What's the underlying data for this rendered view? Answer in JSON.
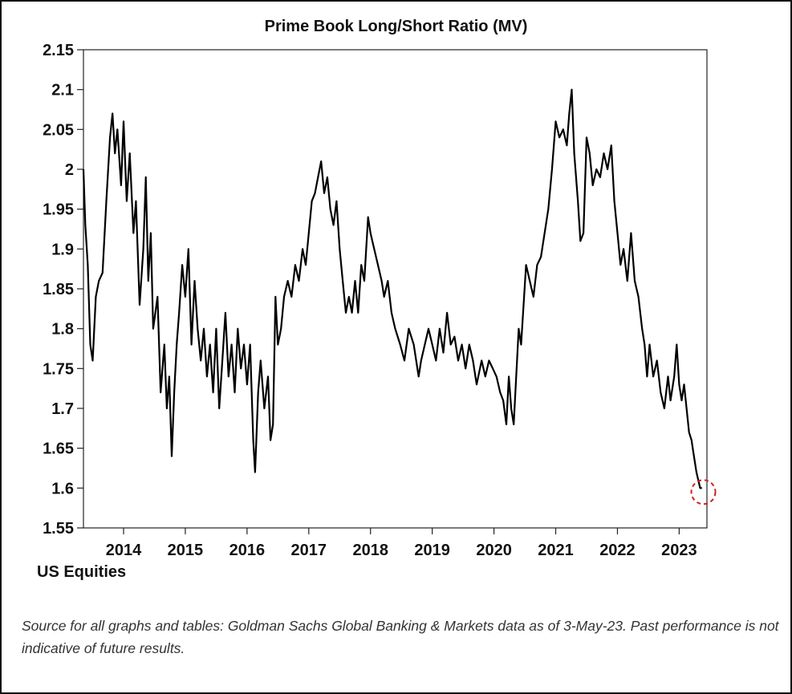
{
  "chart_data": {
    "type": "line",
    "title": "Prime Book Long/Short Ratio (MV)",
    "xlabel": "US Equities",
    "ylabel": "",
    "ylim": [
      1.55,
      2.15
    ],
    "yticks": [
      1.55,
      1.6,
      1.65,
      1.7,
      1.75,
      1.8,
      1.85,
      1.9,
      1.95,
      2,
      2.05,
      2.1,
      2.15
    ],
    "ytick_labels": [
      "1.55",
      "1.6",
      "1.65",
      "1.7",
      "1.75",
      "1.8",
      "1.85",
      "1.9",
      "1.95",
      "2",
      "2.05",
      "2.1",
      "2.15"
    ],
    "xlim": [
      2013.35,
      2023.45
    ],
    "xticks": [
      2014,
      2015,
      2016,
      2017,
      2018,
      2019,
      2020,
      2021,
      2022,
      2023
    ],
    "xtick_labels": [
      "2014",
      "2015",
      "2016",
      "2017",
      "2018",
      "2019",
      "2020",
      "2021",
      "2022",
      "2023"
    ],
    "grid": false,
    "highlight": {
      "x": 2023.34,
      "y": 1.595,
      "style": "dashed-circle",
      "color": "#cc2222"
    },
    "series": [
      {
        "color": "#000000",
        "points": [
          [
            2013.35,
            2.0
          ],
          [
            2013.38,
            1.93
          ],
          [
            2013.42,
            1.88
          ],
          [
            2013.46,
            1.78
          ],
          [
            2013.5,
            1.76
          ],
          [
            2013.55,
            1.84
          ],
          [
            2013.6,
            1.86
          ],
          [
            2013.66,
            1.87
          ],
          [
            2013.72,
            1.96
          ],
          [
            2013.78,
            2.04
          ],
          [
            2013.82,
            2.07
          ],
          [
            2013.86,
            2.02
          ],
          [
            2013.9,
            2.05
          ],
          [
            2013.96,
            1.98
          ],
          [
            2014.0,
            2.06
          ],
          [
            2014.05,
            1.96
          ],
          [
            2014.1,
            2.02
          ],
          [
            2014.16,
            1.92
          ],
          [
            2014.2,
            1.96
          ],
          [
            2014.26,
            1.83
          ],
          [
            2014.32,
            1.9
          ],
          [
            2014.36,
            1.99
          ],
          [
            2014.4,
            1.86
          ],
          [
            2014.44,
            1.92
          ],
          [
            2014.48,
            1.8
          ],
          [
            2014.55,
            1.84
          ],
          [
            2014.6,
            1.72
          ],
          [
            2014.66,
            1.78
          ],
          [
            2014.7,
            1.7
          ],
          [
            2014.74,
            1.74
          ],
          [
            2014.78,
            1.64
          ],
          [
            2014.82,
            1.72
          ],
          [
            2014.86,
            1.78
          ],
          [
            2014.9,
            1.82
          ],
          [
            2014.95,
            1.88
          ],
          [
            2015.0,
            1.84
          ],
          [
            2015.05,
            1.9
          ],
          [
            2015.1,
            1.78
          ],
          [
            2015.15,
            1.86
          ],
          [
            2015.2,
            1.8
          ],
          [
            2015.25,
            1.76
          ],
          [
            2015.3,
            1.8
          ],
          [
            2015.35,
            1.74
          ],
          [
            2015.4,
            1.78
          ],
          [
            2015.45,
            1.72
          ],
          [
            2015.5,
            1.8
          ],
          [
            2015.55,
            1.7
          ],
          [
            2015.6,
            1.76
          ],
          [
            2015.65,
            1.82
          ],
          [
            2015.7,
            1.74
          ],
          [
            2015.75,
            1.78
          ],
          [
            2015.8,
            1.72
          ],
          [
            2015.85,
            1.8
          ],
          [
            2015.9,
            1.75
          ],
          [
            2015.95,
            1.78
          ],
          [
            2016.0,
            1.73
          ],
          [
            2016.05,
            1.78
          ],
          [
            2016.1,
            1.66
          ],
          [
            2016.13,
            1.62
          ],
          [
            2016.18,
            1.72
          ],
          [
            2016.22,
            1.76
          ],
          [
            2016.28,
            1.7
          ],
          [
            2016.34,
            1.74
          ],
          [
            2016.38,
            1.66
          ],
          [
            2016.42,
            1.68
          ],
          [
            2016.46,
            1.84
          ],
          [
            2016.5,
            1.78
          ],
          [
            2016.55,
            1.8
          ],
          [
            2016.6,
            1.84
          ],
          [
            2016.66,
            1.86
          ],
          [
            2016.72,
            1.84
          ],
          [
            2016.78,
            1.88
          ],
          [
            2016.84,
            1.86
          ],
          [
            2016.9,
            1.9
          ],
          [
            2016.95,
            1.88
          ],
          [
            2017.0,
            1.92
          ],
          [
            2017.05,
            1.96
          ],
          [
            2017.1,
            1.97
          ],
          [
            2017.15,
            1.99
          ],
          [
            2017.2,
            2.01
          ],
          [
            2017.25,
            1.97
          ],
          [
            2017.3,
            1.99
          ],
          [
            2017.35,
            1.95
          ],
          [
            2017.4,
            1.93
          ],
          [
            2017.45,
            1.96
          ],
          [
            2017.5,
            1.9
          ],
          [
            2017.55,
            1.86
          ],
          [
            2017.6,
            1.82
          ],
          [
            2017.65,
            1.84
          ],
          [
            2017.7,
            1.82
          ],
          [
            2017.75,
            1.86
          ],
          [
            2017.8,
            1.82
          ],
          [
            2017.85,
            1.88
          ],
          [
            2017.9,
            1.86
          ],
          [
            2017.96,
            1.94
          ],
          [
            2018.0,
            1.92
          ],
          [
            2018.06,
            1.9
          ],
          [
            2018.12,
            1.88
          ],
          [
            2018.18,
            1.86
          ],
          [
            2018.22,
            1.84
          ],
          [
            2018.28,
            1.86
          ],
          [
            2018.34,
            1.82
          ],
          [
            2018.4,
            1.8
          ],
          [
            2018.48,
            1.78
          ],
          [
            2018.55,
            1.76
          ],
          [
            2018.62,
            1.8
          ],
          [
            2018.7,
            1.78
          ],
          [
            2018.78,
            1.74
          ],
          [
            2018.82,
            1.76
          ],
          [
            2018.88,
            1.78
          ],
          [
            2018.94,
            1.8
          ],
          [
            2019.0,
            1.78
          ],
          [
            2019.06,
            1.76
          ],
          [
            2019.12,
            1.8
          ],
          [
            2019.18,
            1.77
          ],
          [
            2019.24,
            1.82
          ],
          [
            2019.3,
            1.78
          ],
          [
            2019.36,
            1.79
          ],
          [
            2019.42,
            1.76
          ],
          [
            2019.48,
            1.78
          ],
          [
            2019.54,
            1.75
          ],
          [
            2019.6,
            1.78
          ],
          [
            2019.66,
            1.76
          ],
          [
            2019.72,
            1.73
          ],
          [
            2019.8,
            1.76
          ],
          [
            2019.86,
            1.74
          ],
          [
            2019.92,
            1.76
          ],
          [
            2019.98,
            1.75
          ],
          [
            2020.04,
            1.74
          ],
          [
            2020.1,
            1.72
          ],
          [
            2020.15,
            1.71
          ],
          [
            2020.2,
            1.68
          ],
          [
            2020.24,
            1.74
          ],
          [
            2020.28,
            1.7
          ],
          [
            2020.32,
            1.68
          ],
          [
            2020.36,
            1.74
          ],
          [
            2020.4,
            1.8
          ],
          [
            2020.44,
            1.78
          ],
          [
            2020.48,
            1.83
          ],
          [
            2020.52,
            1.88
          ],
          [
            2020.58,
            1.86
          ],
          [
            2020.64,
            1.84
          ],
          [
            2020.7,
            1.88
          ],
          [
            2020.76,
            1.89
          ],
          [
            2020.82,
            1.92
          ],
          [
            2020.88,
            1.95
          ],
          [
            2020.94,
            2.0
          ],
          [
            2021.0,
            2.06
          ],
          [
            2021.06,
            2.04
          ],
          [
            2021.12,
            2.05
          ],
          [
            2021.18,
            2.03
          ],
          [
            2021.22,
            2.07
          ],
          [
            2021.26,
            2.1
          ],
          [
            2021.3,
            2.02
          ],
          [
            2021.36,
            1.96
          ],
          [
            2021.4,
            1.91
          ],
          [
            2021.45,
            1.92
          ],
          [
            2021.5,
            2.04
          ],
          [
            2021.55,
            2.02
          ],
          [
            2021.6,
            1.98
          ],
          [
            2021.66,
            2.0
          ],
          [
            2021.72,
            1.99
          ],
          [
            2021.78,
            2.02
          ],
          [
            2021.84,
            2.0
          ],
          [
            2021.9,
            2.03
          ],
          [
            2021.95,
            1.96
          ],
          [
            2022.0,
            1.92
          ],
          [
            2022.05,
            1.88
          ],
          [
            2022.1,
            1.9
          ],
          [
            2022.16,
            1.86
          ],
          [
            2022.22,
            1.92
          ],
          [
            2022.28,
            1.86
          ],
          [
            2022.34,
            1.84
          ],
          [
            2022.4,
            1.8
          ],
          [
            2022.44,
            1.78
          ],
          [
            2022.48,
            1.74
          ],
          [
            2022.52,
            1.78
          ],
          [
            2022.58,
            1.74
          ],
          [
            2022.64,
            1.76
          ],
          [
            2022.7,
            1.72
          ],
          [
            2022.76,
            1.7
          ],
          [
            2022.82,
            1.74
          ],
          [
            2022.86,
            1.71
          ],
          [
            2022.92,
            1.74
          ],
          [
            2022.96,
            1.78
          ],
          [
            2023.0,
            1.73
          ],
          [
            2023.04,
            1.71
          ],
          [
            2023.08,
            1.73
          ],
          [
            2023.12,
            1.7
          ],
          [
            2023.16,
            1.67
          ],
          [
            2023.2,
            1.66
          ],
          [
            2023.24,
            1.64
          ],
          [
            2023.28,
            1.62
          ],
          [
            2023.31,
            1.61
          ],
          [
            2023.34,
            1.6
          ],
          [
            2023.37,
            1.6
          ]
        ]
      }
    ]
  },
  "footer": {
    "sub_label": "US Equities",
    "source_note": "Source for all graphs and tables: Goldman Sachs Global Banking & Markets data as of 3-May-23. Past performance is not indicative of future results."
  },
  "colors": {
    "line": "#000000",
    "axis": "#222222",
    "highlight": "#cc2222"
  }
}
